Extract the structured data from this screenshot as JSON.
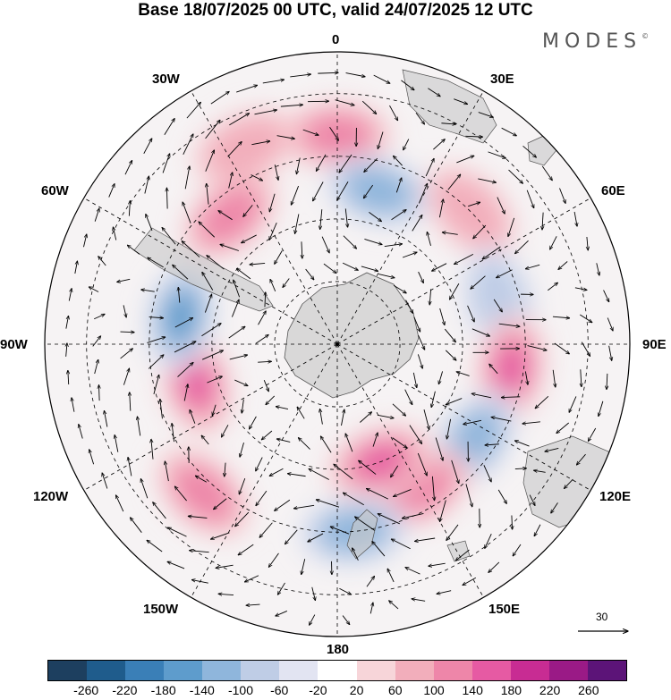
{
  "title": "Base 18/07/2025 00 UTC, valid 24/07/2025 12 UTC",
  "brand": "MODES",
  "brand_mark": "©",
  "longitude_labels": {
    "lon_0": "0",
    "lon_30e": "30E",
    "lon_60e": "60E",
    "lon_90e": "90E",
    "lon_120e": "120E",
    "lon_150e": "150E",
    "lon_180": "180",
    "lon_150w": "150W",
    "lon_120w": "120W",
    "lon_90w": "90W",
    "lon_60w": "60W",
    "lon_30w": "30W"
  },
  "reference_vector": {
    "value": "30"
  },
  "colorbar": {
    "colors": [
      "#1d3f5f",
      "#1f5c8c",
      "#3a7fb7",
      "#5e9ccc",
      "#8fb6dc",
      "#bfcde6",
      "#e2e4f2",
      "#ffffff",
      "#f7d5d9",
      "#f2aebb",
      "#ee86a9",
      "#e65aa3",
      "#c82c93",
      "#9a1a86",
      "#5c1478"
    ],
    "labels": [
      "-260",
      "-220",
      "-180",
      "-140",
      "-100",
      "-60",
      "-20",
      "20",
      "60",
      "100",
      "140",
      "180",
      "220",
      "260"
    ]
  },
  "map": {
    "projection": "south polar stereographic",
    "field": "anomaly",
    "anomaly_centers": [
      {
        "lat": -40,
        "lon": 0,
        "value": 120
      },
      {
        "lat": -52,
        "lon": 15,
        "value": -130
      },
      {
        "lat": -45,
        "lon": 45,
        "value": 110
      },
      {
        "lat": -50,
        "lon": 75,
        "value": -110
      },
      {
        "lat": -48,
        "lon": 98,
        "value": 170
      },
      {
        "lat": -50,
        "lon": 125,
        "value": -150
      },
      {
        "lat": -50,
        "lon": 150,
        "value": 130
      },
      {
        "lat": -60,
        "lon": 160,
        "value": 170
      },
      {
        "lat": -45,
        "lon": 175,
        "value": -140
      },
      {
        "lat": -42,
        "lon": -138,
        "value": 120
      },
      {
        "lat": -55,
        "lon": -105,
        "value": 180
      },
      {
        "lat": -52,
        "lon": -80,
        "value": -180
      },
      {
        "lat": -50,
        "lon": -40,
        "value": 120
      },
      {
        "lat": -38,
        "lon": -25,
        "value": 80
      }
    ]
  }
}
